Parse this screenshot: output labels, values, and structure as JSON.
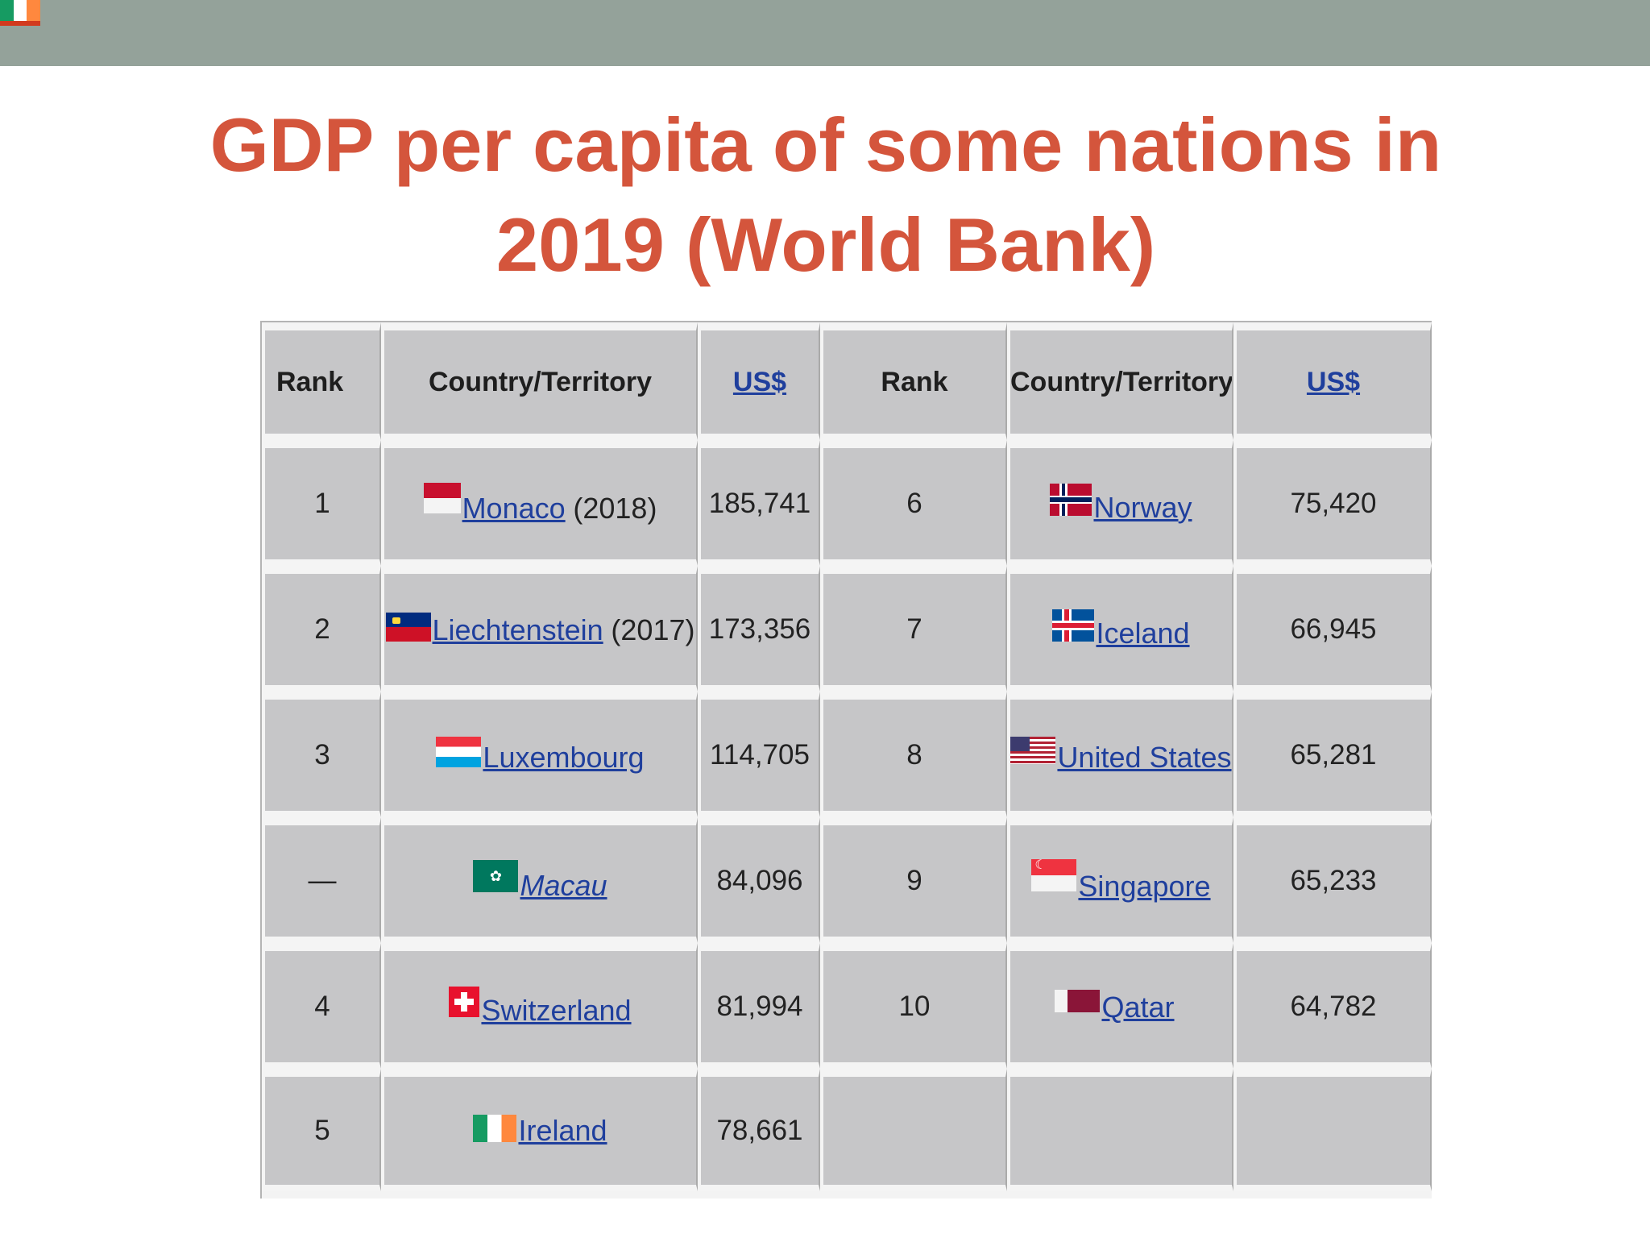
{
  "slide": {
    "title": "GDP per capita of some nations in 2019 (World Bank)"
  },
  "table": {
    "headers": {
      "rank": "Rank",
      "country": "Country/Territory",
      "usd": "US$"
    },
    "rows": [
      {
        "left": {
          "rank": "1",
          "country": "Monaco",
          "note": "(2018)",
          "usd": "185,741",
          "flag": "monaco-flag-icon",
          "italic": false
        },
        "right": {
          "rank": "6",
          "country": "Norway",
          "note": "",
          "usd": "75,420",
          "flag": "norway-flag-icon"
        }
      },
      {
        "left": {
          "rank": "2",
          "country": "Liechtenstein",
          "note": "(2017)",
          "usd": "173,356",
          "flag": "liechtenstein-flag-icon",
          "italic": false
        },
        "right": {
          "rank": "7",
          "country": "Iceland",
          "note": "",
          "usd": "66,945",
          "flag": "iceland-flag-icon"
        }
      },
      {
        "left": {
          "rank": "3",
          "country": "Luxembourg",
          "note": "",
          "usd": "114,705",
          "flag": "luxembourg-flag-icon",
          "italic": false
        },
        "right": {
          "rank": "8",
          "country": "United States",
          "note": "",
          "usd": "65,281",
          "flag": "usa-flag-icon"
        }
      },
      {
        "left": {
          "rank": "—",
          "country": "Macau",
          "note": "",
          "usd": "84,096",
          "flag": "macau-flag-icon",
          "italic": true
        },
        "right": {
          "rank": "9",
          "country": "Singapore",
          "note": "",
          "usd": "65,233",
          "flag": "singapore-flag-icon"
        }
      },
      {
        "left": {
          "rank": "4",
          "country": "Switzerland",
          "note": "",
          "usd": "81,994",
          "flag": "switzerland-flag-icon",
          "italic": false
        },
        "right": {
          "rank": "10",
          "country": "Qatar",
          "note": "",
          "usd": "64,782",
          "flag": "qatar-flag-icon"
        }
      },
      {
        "left": {
          "rank": "5",
          "country": "Ireland",
          "note": "",
          "usd": "78,661",
          "flag": "ireland-flag-icon",
          "italic": false
        },
        "right": null
      }
    ]
  },
  "colors": {
    "title": "#d4553c",
    "top_bar": "#94a29a",
    "cell": "#c6c6c8",
    "link": "#1f3f9d"
  }
}
